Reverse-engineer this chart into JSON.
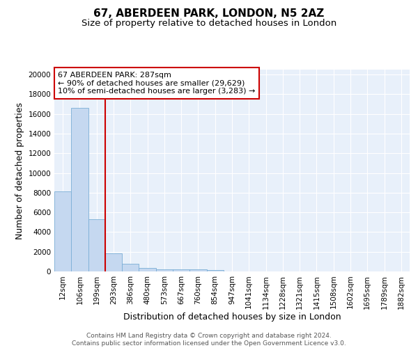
{
  "title": "67, ABERDEEN PARK, LONDON, N5 2AZ",
  "subtitle": "Size of property relative to detached houses in London",
  "xlabel": "Distribution of detached houses by size in London",
  "ylabel": "Number of detached properties",
  "bin_labels": [
    "12sqm",
    "106sqm",
    "199sqm",
    "293sqm",
    "386sqm",
    "480sqm",
    "573sqm",
    "667sqm",
    "760sqm",
    "854sqm",
    "947sqm",
    "1041sqm",
    "1134sqm",
    "1228sqm",
    "1321sqm",
    "1415sqm",
    "1508sqm",
    "1602sqm",
    "1695sqm",
    "1789sqm",
    "1882sqm"
  ],
  "bar_heights": [
    8100,
    16600,
    5300,
    1850,
    750,
    320,
    220,
    200,
    180,
    150,
    0,
    0,
    0,
    0,
    0,
    0,
    0,
    0,
    0,
    0,
    0
  ],
  "bar_color": "#c5d8f0",
  "bar_edge_color": "#7aaed6",
  "background_color": "#e8f0fa",
  "grid_color": "#ffffff",
  "vline_color": "#cc0000",
  "annotation_text": "67 ABERDEEN PARK: 287sqm\n← 90% of detached houses are smaller (29,629)\n10% of semi-detached houses are larger (3,283) →",
  "annotation_box_color": "#ffffff",
  "annotation_box_edge": "#cc0000",
  "ylim": [
    0,
    20500
  ],
  "yticks": [
    0,
    2000,
    4000,
    6000,
    8000,
    10000,
    12000,
    14000,
    16000,
    18000,
    20000
  ],
  "footer_text": "Contains HM Land Registry data © Crown copyright and database right 2024.\nContains public sector information licensed under the Open Government Licence v3.0.",
  "title_fontsize": 11,
  "subtitle_fontsize": 9.5,
  "axis_label_fontsize": 9,
  "tick_fontsize": 7.5,
  "annotation_fontsize": 8,
  "footer_fontsize": 6.5
}
